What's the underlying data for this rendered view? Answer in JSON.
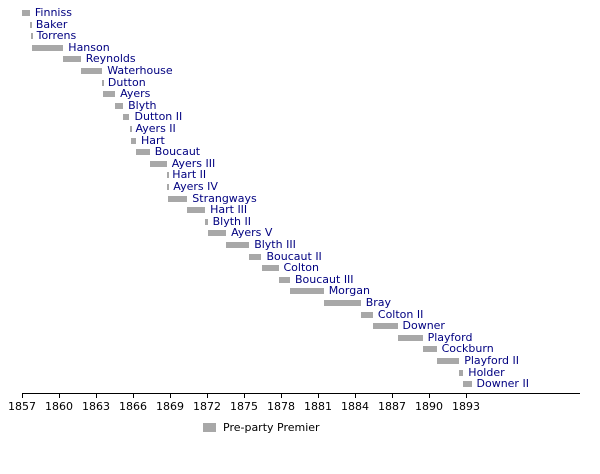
{
  "chart_data": {
    "type": "bar",
    "variant": "gantt-timeline",
    "title": "",
    "xlabel": "",
    "ylabel": "",
    "grid": false,
    "legend_position": "bottom",
    "x_start": 1857,
    "xlim": [
      1857,
      1896.5
    ],
    "x_ticks": [
      1857,
      1860,
      1863,
      1866,
      1869,
      1872,
      1875,
      1878,
      1881,
      1884,
      1887,
      1890,
      1893
    ],
    "bar_color": "#a8a8a8",
    "label_color": "#000080",
    "axis_color": "#000000",
    "legend": [
      {
        "label": "Pre-party Premier",
        "color": "#a8a8a8"
      }
    ],
    "premiers": [
      {
        "name": "Finniss",
        "start": 1857.0,
        "end": 1857.64
      },
      {
        "name": "Baker",
        "start": 1857.64,
        "end": 1857.72
      },
      {
        "name": "Torrens",
        "start": 1857.72,
        "end": 1857.78
      },
      {
        "name": "Hanson",
        "start": 1857.78,
        "end": 1860.35
      },
      {
        "name": "Reynolds",
        "start": 1860.35,
        "end": 1861.76
      },
      {
        "name": "Waterhouse",
        "start": 1861.76,
        "end": 1863.5
      },
      {
        "name": "Dutton",
        "start": 1863.5,
        "end": 1863.56
      },
      {
        "name": "Ayers",
        "start": 1863.56,
        "end": 1864.55
      },
      {
        "name": "Blyth",
        "start": 1864.55,
        "end": 1865.2
      },
      {
        "name": "Dutton II",
        "start": 1865.2,
        "end": 1865.72
      },
      {
        "name": "Ayers II",
        "start": 1865.72,
        "end": 1865.8
      },
      {
        "name": "Hart",
        "start": 1865.8,
        "end": 1866.24
      },
      {
        "name": "Boucaut",
        "start": 1866.24,
        "end": 1867.36
      },
      {
        "name": "Ayers III",
        "start": 1867.36,
        "end": 1868.73
      },
      {
        "name": "Hart II",
        "start": 1868.73,
        "end": 1868.78
      },
      {
        "name": "Ayers IV",
        "start": 1868.78,
        "end": 1868.86
      },
      {
        "name": "Strangways",
        "start": 1868.86,
        "end": 1870.4
      },
      {
        "name": "Hart III",
        "start": 1870.4,
        "end": 1871.85
      },
      {
        "name": "Blyth II",
        "start": 1871.85,
        "end": 1872.05
      },
      {
        "name": "Ayers V",
        "start": 1872.05,
        "end": 1873.55
      },
      {
        "name": "Blyth III",
        "start": 1873.55,
        "end": 1875.42
      },
      {
        "name": "Boucaut II",
        "start": 1875.42,
        "end": 1876.42
      },
      {
        "name": "Colton",
        "start": 1876.42,
        "end": 1877.8
      },
      {
        "name": "Boucaut III",
        "start": 1877.8,
        "end": 1878.73
      },
      {
        "name": "Morgan",
        "start": 1878.73,
        "end": 1881.46
      },
      {
        "name": "Bray",
        "start": 1881.46,
        "end": 1884.46
      },
      {
        "name": "Colton II",
        "start": 1884.46,
        "end": 1885.45
      },
      {
        "name": "Downer",
        "start": 1885.45,
        "end": 1887.45
      },
      {
        "name": "Playford",
        "start": 1887.45,
        "end": 1889.48
      },
      {
        "name": "Cockburn",
        "start": 1889.48,
        "end": 1890.62
      },
      {
        "name": "Playford II",
        "start": 1890.62,
        "end": 1892.45
      },
      {
        "name": "Holder",
        "start": 1892.45,
        "end": 1892.78
      },
      {
        "name": "Downer II",
        "start": 1892.78,
        "end": 1893.45
      }
    ]
  }
}
